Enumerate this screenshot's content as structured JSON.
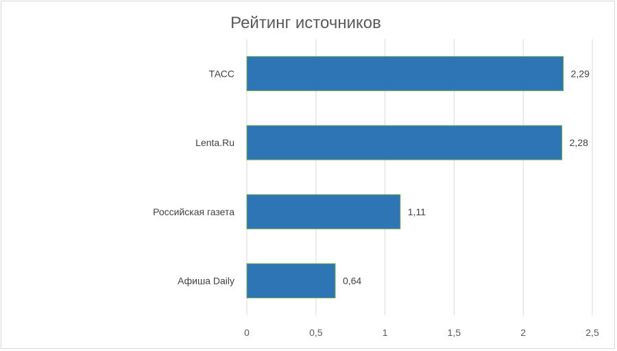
{
  "chart_data": {
    "type": "bar",
    "orientation": "horizontal",
    "title": "Рейтинг источников",
    "categories": [
      "ТАСС",
      "Lenta.Ru",
      "Российская газета",
      "Афиша Daily"
    ],
    "values": [
      2.29,
      2.28,
      1.11,
      0.64
    ],
    "data_labels": [
      "2,29",
      "2,28",
      "1,11",
      "0,64"
    ],
    "xlim": [
      0,
      2.5
    ],
    "x_ticks": [
      0,
      0.5,
      1,
      1.5,
      2,
      2.5
    ],
    "x_tick_labels": [
      "0",
      "0,5",
      "1",
      "1,5",
      "2",
      "2,5"
    ],
    "grid": "vertical",
    "legend": "none",
    "colors": {
      "bar": "#2e75b6",
      "bar_border": "#70ad47",
      "grid": "#d9d9d9"
    }
  }
}
